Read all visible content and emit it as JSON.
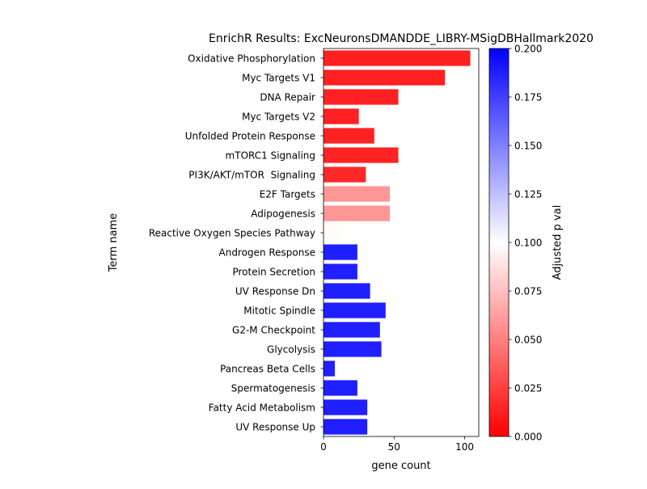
{
  "chart_data": {
    "type": "bar",
    "orientation": "horizontal",
    "title": "EnrichR Results: ExcNeuronsDMANDDE_LIBRY-MSigDBHallmark2020",
    "xlabel": "gene count",
    "ylabel": "Term name",
    "xlim": [
      0,
      110
    ],
    "xticks": [
      0,
      50,
      100
    ],
    "categories": [
      "Oxidative Phosphorylation",
      "Myc Targets V1",
      "DNA Repair",
      "Myc Targets V2",
      "Unfolded Protein Response",
      "mTORC1 Signaling",
      "PI3K/AKT/mTOR  Signaling",
      "E2F Targets",
      "Adipogenesis",
      "Reactive Oxygen Species Pathway",
      "Androgen Response",
      "Protein Secretion",
      "UV Response Dn",
      "Mitotic Spindle",
      "G2-M Checkpoint",
      "Glycolysis",
      "Pancreas Beta Cells",
      "Spermatogenesis",
      "Fatty Acid Metabolism",
      "UV Response Up"
    ],
    "values": [
      104,
      86,
      53,
      25,
      36,
      53,
      30,
      47,
      47,
      14,
      24,
      24,
      33,
      44,
      40,
      41,
      8,
      24,
      31,
      31
    ],
    "color_values": [
      0.0002,
      0.0004,
      0.0008,
      0.0009,
      0.0012,
      0.0015,
      0.004,
      0.053,
      0.053,
      0.098,
      0.2,
      0.2,
      0.2,
      0.2,
      0.2,
      0.2,
      0.2,
      0.2,
      0.2,
      0.2
    ],
    "colorbar": {
      "label": "Adjusted p val",
      "range": [
        0.0,
        0.2
      ],
      "ticks": [
        "0.000",
        "0.025",
        "0.050",
        "0.075",
        "0.100",
        "0.125",
        "0.150",
        "0.175",
        "0.200"
      ],
      "colormap": [
        "#ff0000",
        "#ffffff",
        "#0000ff"
      ]
    },
    "grid": false
  }
}
